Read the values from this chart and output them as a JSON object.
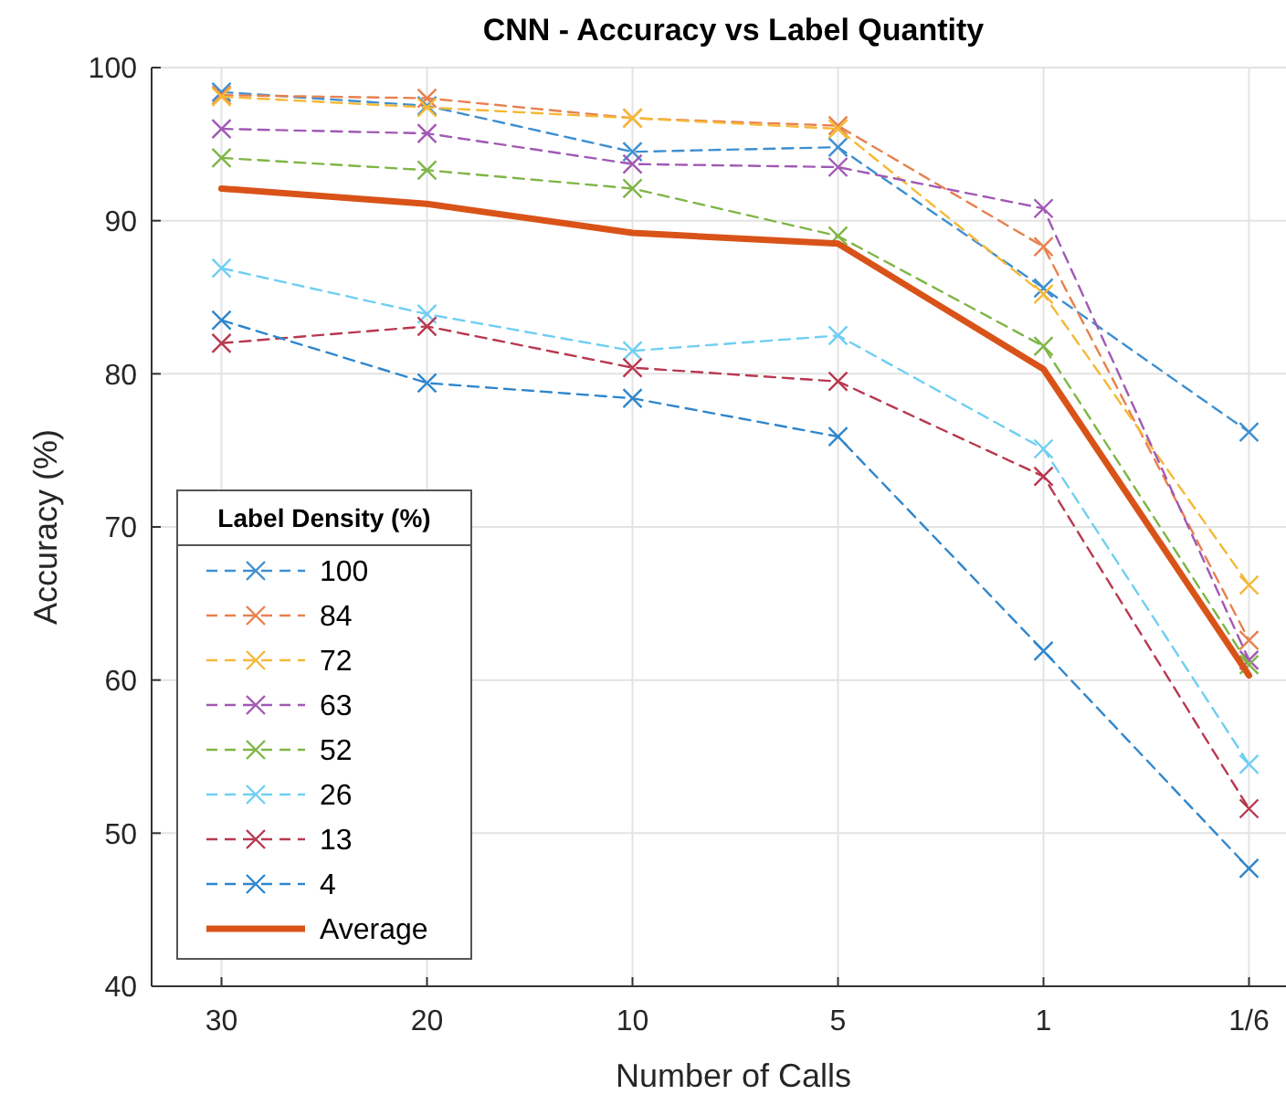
{
  "chart_data": {
    "type": "line",
    "title": "CNN - Accuracy vs Label Quantity",
    "xlabel": "Number of Calls",
    "ylabel": "Accuracy (%)",
    "legend_title": "Label Density (%)",
    "categories": [
      "30",
      "20",
      "10",
      "5",
      "1",
      "1/6"
    ],
    "ylim": [
      40,
      100
    ],
    "yticks": [
      40,
      50,
      60,
      70,
      80,
      90,
      100
    ],
    "grid": true,
    "legend": "bottom left",
    "marker": "cross",
    "line_style": "dashed",
    "series": [
      {
        "name": "100",
        "color": "#3d8fd1",
        "values": [
          98.4,
          97.5,
          94.5,
          94.8,
          85.6,
          76.2
        ]
      },
      {
        "name": "84",
        "color": "#e8804f",
        "values": [
          98.2,
          98.0,
          96.7,
          96.2,
          88.3,
          62.6
        ]
      },
      {
        "name": "72",
        "color": "#f5b836",
        "values": [
          98.1,
          97.4,
          96.7,
          96.0,
          85.2,
          66.2
        ]
      },
      {
        "name": "63",
        "color": "#a159b3",
        "values": [
          96.0,
          95.7,
          93.7,
          93.5,
          90.8,
          61.3
        ]
      },
      {
        "name": "52",
        "color": "#7fb545",
        "values": [
          94.1,
          93.3,
          92.1,
          89.0,
          81.8,
          61.0
        ]
      },
      {
        "name": "26",
        "color": "#6fcff2",
        "values": [
          86.9,
          83.9,
          81.5,
          82.5,
          75.1,
          54.5
        ]
      },
      {
        "name": "13",
        "color": "#b8384f",
        "values": [
          82.0,
          83.1,
          80.4,
          79.5,
          73.3,
          51.6
        ]
      },
      {
        "name": "4",
        "color": "#2f86cc",
        "values": [
          83.5,
          79.4,
          78.4,
          75.9,
          61.9,
          47.7
        ]
      },
      {
        "name": "Average",
        "color": "#d95319",
        "values": [
          92.1,
          91.1,
          89.2,
          88.5,
          80.3,
          60.3
        ],
        "marker": "none",
        "line_style": "solid"
      }
    ]
  }
}
